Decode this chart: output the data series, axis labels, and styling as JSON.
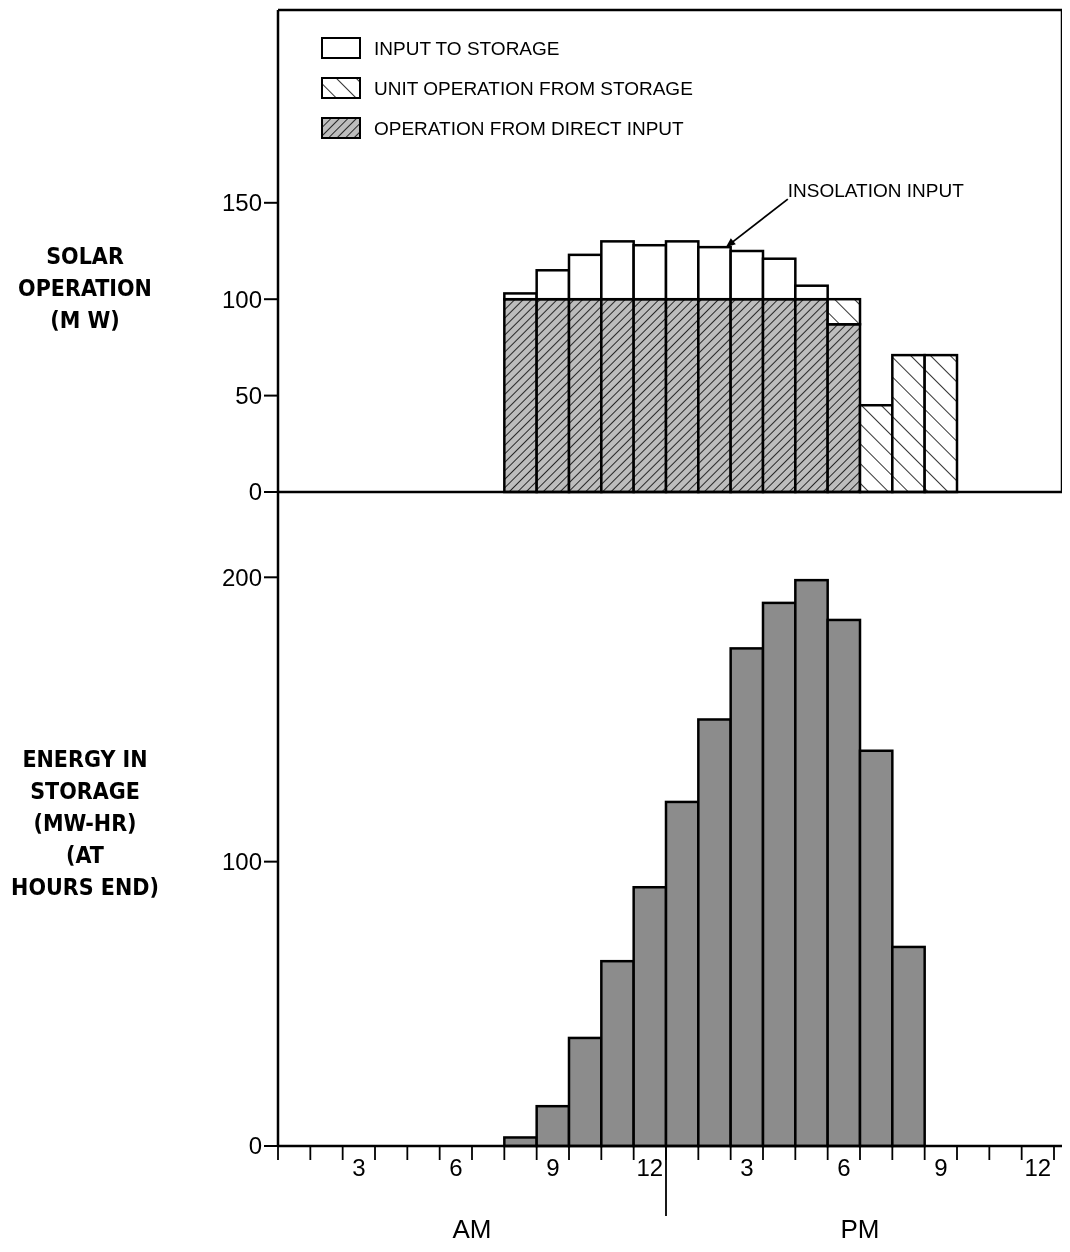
{
  "chart_data": [
    {
      "type": "bar",
      "stacked": true,
      "ylabel": "SOLAR\nOPERATION\n(M W)",
      "categories": [
        null,
        null,
        null,
        null,
        null,
        null,
        null,
        null,
        null,
        null,
        null,
        null,
        null,
        null,
        null,
        null,
        null,
        null,
        null,
        null,
        null,
        null,
        null,
        null
      ],
      "ylim": [
        0,
        250
      ],
      "yticks": [
        0,
        50,
        100,
        150
      ],
      "tick_labels": "y",
      "legend": "top left",
      "series": [
        {
          "name": "OPERATION FROM DIRECT INPUT",
          "color": "#000000",
          "values": [
            null,
            null,
            null,
            null,
            null,
            null,
            null,
            100,
            100,
            100,
            100,
            100,
            100,
            100,
            100,
            100,
            100,
            87,
            null,
            null,
            null,
            null,
            null,
            null
          ]
        },
        {
          "name": "UNIT OPERATION FROM STORAGE",
          "color": "#000000",
          "values": [
            null,
            null,
            null,
            null,
            null,
            null,
            null,
            null,
            null,
            null,
            null,
            null,
            null,
            null,
            null,
            null,
            null,
            13,
            45,
            71,
            71,
            null,
            null,
            null
          ]
        },
        {
          "name": "INPUT TO STORAGE",
          "color": "#ffffff",
          "values": [
            null,
            null,
            null,
            null,
            null,
            null,
            null,
            3,
            15,
            23,
            30,
            28,
            30,
            27,
            25,
            21,
            7,
            null,
            null,
            null,
            null,
            null,
            null,
            null
          ]
        }
      ],
      "annotations": [
        "INSOLATION INPUT"
      ]
    },
    {
      "type": "bar",
      "ylabel": "ENERGY IN\nSTORAGE\n(MW-HR)\n(AT\nHOURS END)",
      "categories": [
        null,
        null,
        "3",
        null,
        null,
        "6",
        null,
        null,
        "9",
        null,
        null,
        "12",
        null,
        null,
        "3",
        null,
        null,
        "6",
        null,
        null,
        "9",
        null,
        null,
        "12"
      ],
      "values": [
        null,
        null,
        null,
        null,
        null,
        null,
        null,
        3,
        14,
        38,
        65,
        91,
        121,
        150,
        175,
        191,
        199,
        185,
        139,
        70,
        null,
        null,
        null,
        null
      ],
      "color": "#8c8c8c",
      "ylim": [
        0,
        230
      ],
      "yticks": [
        0,
        100,
        200
      ],
      "annotations": [
        "AM",
        "PM"
      ]
    }
  ]
}
